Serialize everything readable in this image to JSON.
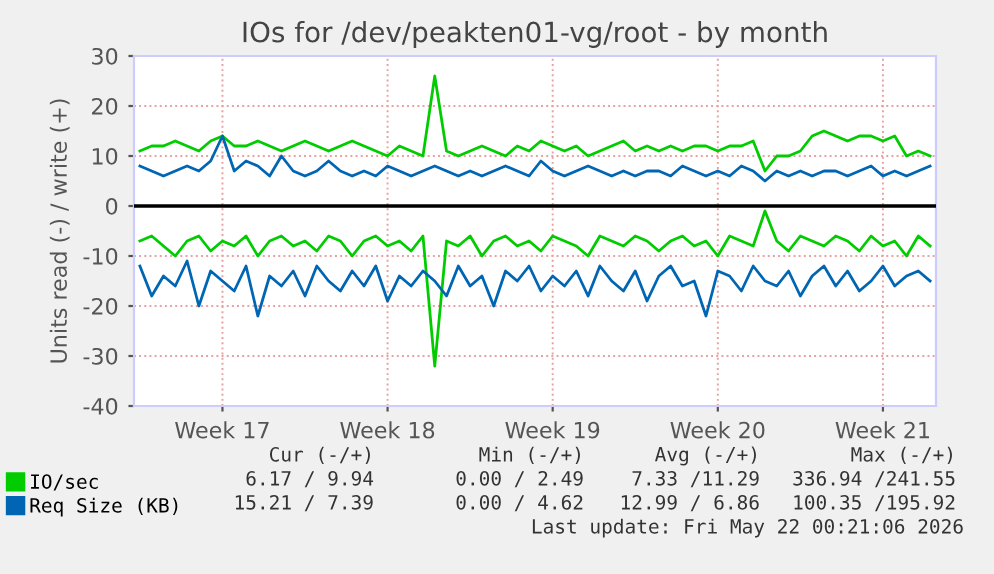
{
  "chart_data": {
    "type": "line",
    "title": "IOs for /dev/peakten01-vg/root - by month",
    "ylabel": "Units read (-) / write (+)",
    "categories": [
      null,
      null,
      null,
      null,
      null,
      null,
      null,
      "Week 17",
      null,
      null,
      null,
      null,
      null,
      null,
      null,
      null,
      null,
      null,
      null,
      null,
      null,
      "Week 18",
      null,
      null,
      null,
      null,
      null,
      null,
      null,
      null,
      null,
      null,
      null,
      null,
      null,
      "Week 19",
      null,
      null,
      null,
      null,
      null,
      null,
      null,
      null,
      null,
      null,
      null,
      null,
      null,
      "Week 20",
      null,
      null,
      null,
      null,
      null,
      null,
      null,
      null,
      null,
      null,
      null,
      null,
      null,
      "Week 21",
      null,
      null,
      null,
      null
    ],
    "series": [
      {
        "name": "IO/sec",
        "color": "#00cc00",
        "values": [
          11,
          12,
          12,
          13,
          12,
          11,
          13,
          14,
          12,
          12,
          13,
          12,
          11,
          12,
          13,
          12,
          11,
          12,
          13,
          12,
          11,
          10,
          12,
          11,
          10,
          26,
          11,
          10,
          11,
          12,
          11,
          10,
          12,
          11,
          13,
          12,
          11,
          12,
          10,
          11,
          12,
          13,
          11,
          12,
          11,
          12,
          11,
          12,
          12,
          11,
          12,
          12,
          13,
          7,
          10,
          10,
          11,
          14,
          15,
          14,
          13,
          14,
          14,
          13,
          14,
          10,
          11,
          10
        ]
      },
      {
        "color": "#00cc00",
        "values": [
          -7,
          -6,
          -8,
          -10,
          -7,
          -6,
          -9,
          -7,
          -8,
          -6,
          -10,
          -7,
          -6,
          -8,
          -7,
          -9,
          -6,
          -7,
          -10,
          -7,
          -6,
          -8,
          -7,
          -9,
          -6,
          -32,
          -7,
          -8,
          -6,
          -10,
          -7,
          -6,
          -8,
          -7,
          -9,
          -6,
          -7,
          -8,
          -10,
          -6,
          -7,
          -8,
          -6,
          -7,
          -9,
          -7,
          -6,
          -8,
          -7,
          -10,
          -6,
          -7,
          -8,
          -1,
          -7,
          -9,
          -6,
          -7,
          -8,
          -6,
          -7,
          -9,
          -6,
          -8,
          -7,
          -10,
          -6,
          -8
        ]
      },
      {
        "name": "Req Size (KB)",
        "color": "#0066b3",
        "values": [
          8,
          7,
          6,
          7,
          8,
          7,
          9,
          14,
          7,
          9,
          8,
          6,
          10,
          7,
          6,
          7,
          9,
          7,
          6,
          7,
          6,
          8,
          7,
          6,
          7,
          8,
          7,
          6,
          7,
          6,
          7,
          8,
          7,
          6,
          9,
          7,
          6,
          7,
          8,
          7,
          6,
          7,
          6,
          7,
          7,
          6,
          8,
          7,
          6,
          7,
          6,
          8,
          7,
          5,
          7,
          6,
          7,
          6,
          7,
          7,
          6,
          7,
          8,
          6,
          7,
          6,
          7,
          8
        ]
      },
      {
        "color": "#0066b3",
        "values": [
          -12,
          -18,
          -14,
          -16,
          -11,
          -20,
          -13,
          -15,
          -17,
          -12,
          -22,
          -14,
          -16,
          -13,
          -18,
          -12,
          -15,
          -17,
          -13,
          -16,
          -12,
          -19,
          -14,
          -16,
          -13,
          -15,
          -18,
          -12,
          -16,
          -14,
          -20,
          -13,
          -15,
          -12,
          -17,
          -14,
          -16,
          -13,
          -18,
          -12,
          -15,
          -17,
          -13,
          -19,
          -14,
          -12,
          -16,
          -15,
          -22,
          -13,
          -14,
          -17,
          -12,
          -15,
          -16,
          -13,
          -18,
          -14,
          -12,
          -16,
          -13,
          -17,
          -15,
          -12,
          -16,
          -14,
          -13,
          -15
        ]
      }
    ],
    "ylim": [
      -40,
      30
    ],
    "yticks": [
      -40,
      -30,
      -20,
      -10,
      0,
      10,
      20,
      30
    ],
    "grid": true,
    "legend": "bottom left",
    "line_style": "solid",
    "marker": "none",
    "ref_lines": [
      {
        "axis": "y",
        "value": 0,
        "color": "#000000"
      }
    ],
    "annotations": [
      "Cur (-/+)",
      "Min (-/+)",
      "Avg (-/+)",
      "Max (-/+)",
      "6.17 / 9.94",
      "0.00 / 2.49",
      "7.33 /11.29",
      "336.94 /241.55",
      "15.21 / 7.39",
      "0.00 / 4.62",
      "12.99 / 6.86",
      "100.35 /195.92",
      "Last update: Fri May 22 00:21:06 2026"
    ]
  }
}
